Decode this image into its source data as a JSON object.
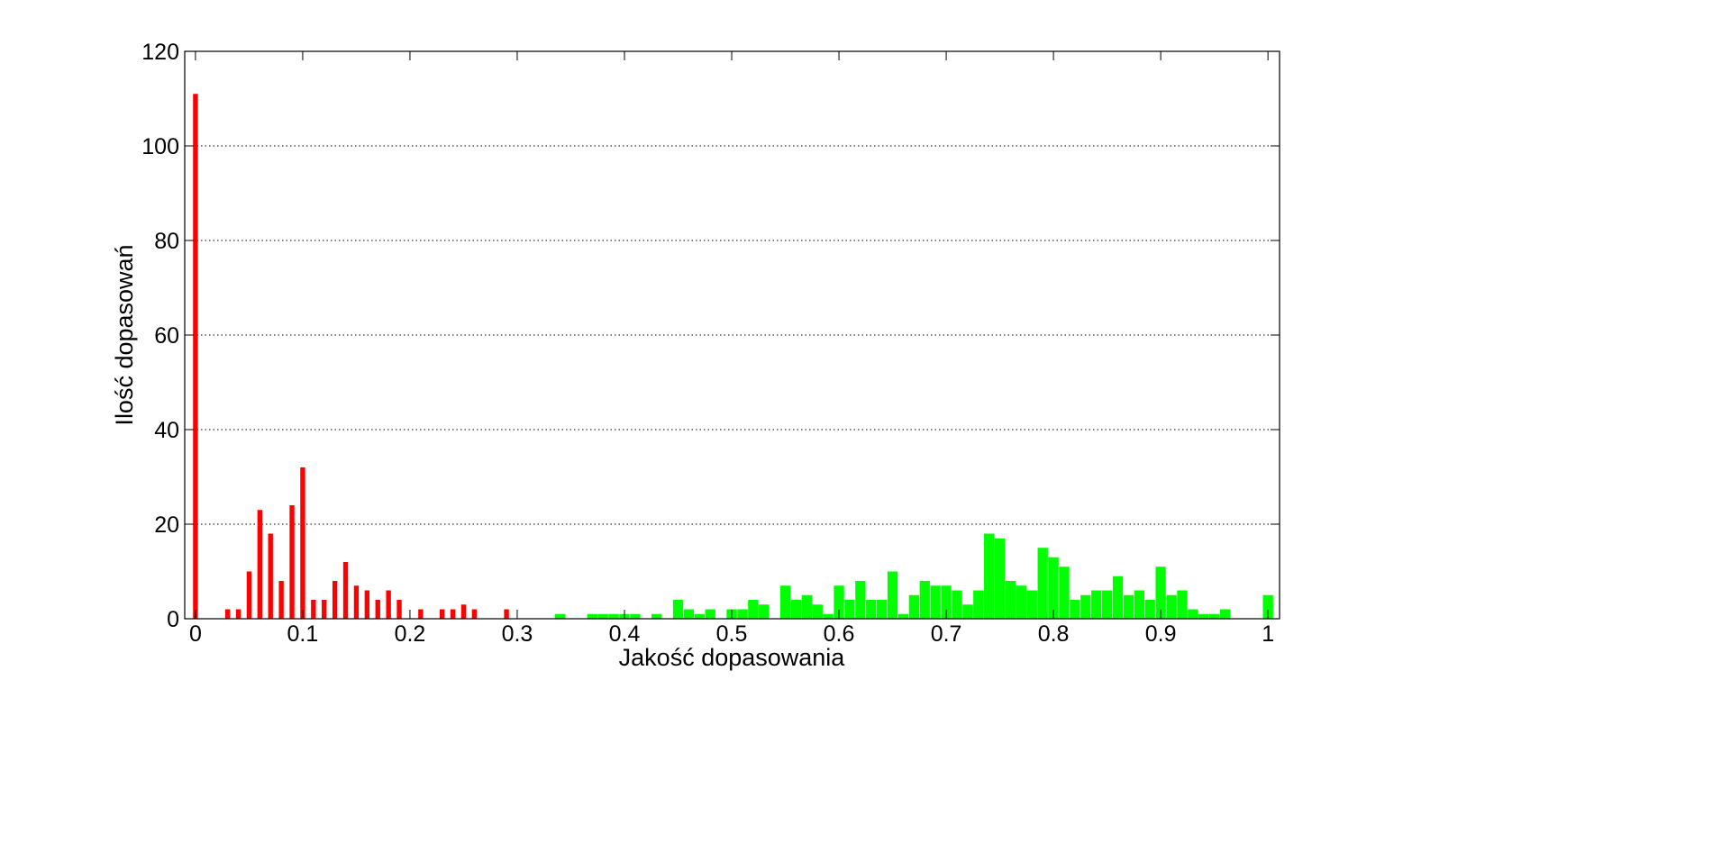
{
  "chart_data": {
    "type": "bar",
    "title": "",
    "xlabel": "Jakość dopasowania",
    "ylabel": "Ilość dopasowań",
    "xlim": [
      0,
      1
    ],
    "ylim": [
      0,
      120
    ],
    "xticks": [
      0,
      0.1,
      0.2,
      0.3,
      0.4,
      0.5,
      0.6,
      0.7,
      0.8,
      0.9,
      1
    ],
    "xtick_labels": [
      "0",
      "0.1",
      "0.2",
      "0.3",
      "0.4",
      "0.5",
      "0.6",
      "0.7",
      "0.8",
      "0.9",
      "1"
    ],
    "yticks": [
      0,
      20,
      40,
      60,
      80,
      100,
      120
    ],
    "ytick_labels": [
      "0",
      "20",
      "40",
      "60",
      "80",
      "100",
      "120"
    ],
    "grid": "horizontal dotted",
    "legend": "none",
    "series": [
      {
        "color": "#ff0000",
        "x": [
          0.0,
          0.03,
          0.04,
          0.05,
          0.06,
          0.07,
          0.08,
          0.09,
          0.1,
          0.11,
          0.12,
          0.13,
          0.14,
          0.15,
          0.16,
          0.17,
          0.18,
          0.19,
          0.21,
          0.23,
          0.24,
          0.25,
          0.26,
          0.29,
          0.45
        ],
        "values": [
          111,
          2,
          2,
          10,
          23,
          18,
          8,
          24,
          32,
          4,
          4,
          8,
          12,
          7,
          6,
          4,
          6,
          4,
          2,
          2,
          2,
          3,
          2,
          2,
          2
        ]
      },
      {
        "color": "#00ff00",
        "x": [
          0.34,
          0.37,
          0.38,
          0.39,
          0.4,
          0.41,
          0.43,
          0.45,
          0.46,
          0.47,
          0.48,
          0.5,
          0.51,
          0.52,
          0.53,
          0.55,
          0.56,
          0.57,
          0.58,
          0.59,
          0.6,
          0.61,
          0.62,
          0.63,
          0.64,
          0.65,
          0.66,
          0.67,
          0.68,
          0.69,
          0.7,
          0.71,
          0.72,
          0.73,
          0.74,
          0.75,
          0.76,
          0.77,
          0.78,
          0.79,
          0.8,
          0.81,
          0.82,
          0.83,
          0.84,
          0.85,
          0.86,
          0.87,
          0.88,
          0.89,
          0.9,
          0.91,
          0.92,
          0.93,
          0.94,
          0.95,
          0.96,
          1.0
        ],
        "values": [
          1,
          1,
          1,
          1,
          1,
          1,
          1,
          4,
          2,
          1,
          2,
          2,
          2,
          4,
          3,
          7,
          4,
          5,
          3,
          1,
          7,
          4,
          8,
          4,
          4,
          10,
          1,
          5,
          8,
          7,
          7,
          6,
          3,
          6,
          18,
          17,
          8,
          7,
          6,
          15,
          13,
          11,
          4,
          5,
          6,
          6,
          9,
          5,
          6,
          4,
          11,
          5,
          6,
          2,
          1,
          1,
          2,
          5
        ]
      }
    ]
  }
}
